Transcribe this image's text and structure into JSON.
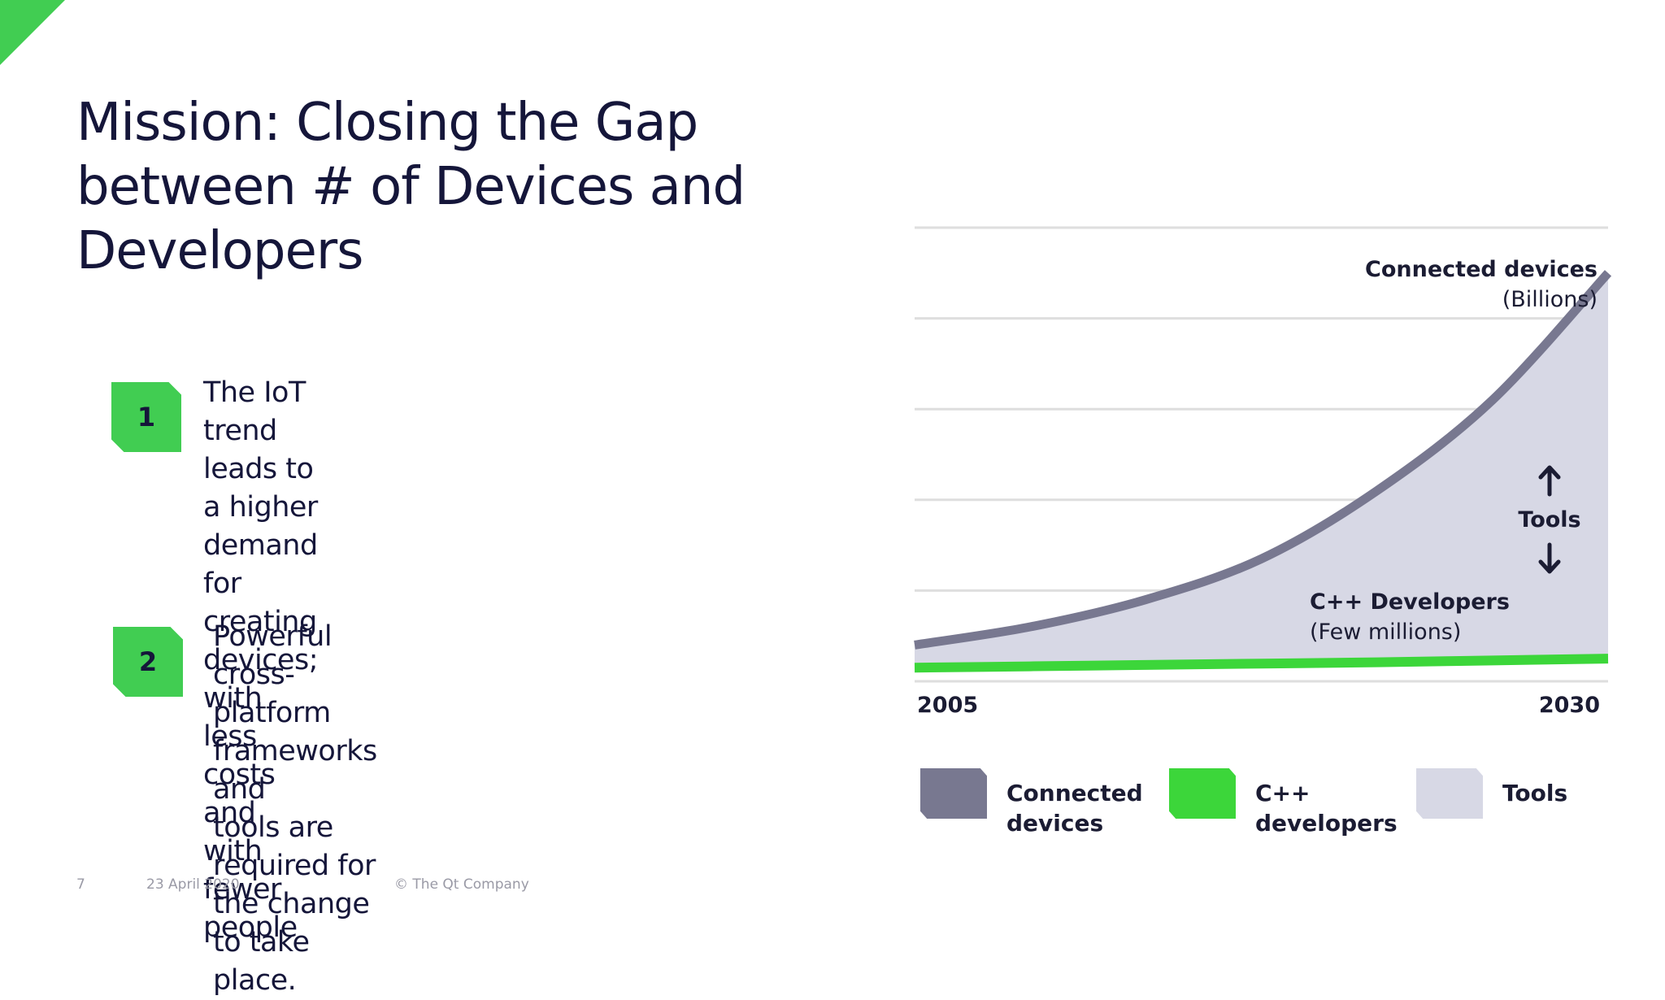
{
  "slide": {
    "title_lines": [
      "Mission: Closing the Gap",
      "between # of Devices and",
      "Developers"
    ],
    "bullets": [
      {
        "number": "1",
        "lines": [
          "The IoT trend leads to a higher demand for",
          "creating devices; with less costs and with",
          "fewer people"
        ]
      },
      {
        "number": "2",
        "lines": [
          "Powerful cross-platform frameworks and",
          "tools are required for the change to take",
          "place."
        ]
      }
    ],
    "footer": {
      "page": "7",
      "date": "23 April 2020",
      "copyright": "© The Qt Company"
    }
  },
  "chart_data": {
    "type": "area",
    "x_labels": [
      "2005",
      "2030"
    ],
    "series": [
      {
        "name": "Connected devices",
        "color": "#787890",
        "values": [
          0.08,
          0.12,
          0.18,
          0.27,
          0.42,
          0.62,
          0.9
        ]
      },
      {
        "name": "C++ developers",
        "color": "#3cd63a",
        "values": [
          0.03,
          0.033,
          0.036,
          0.039,
          0.042,
          0.046,
          0.05
        ]
      }
    ],
    "fill": {
      "name": "Tools",
      "color": "#d7d8e5"
    },
    "annotations": {
      "devices_title": "Connected devices",
      "devices_sub": "(Billions)",
      "devs_title": "C++ Developers",
      "devs_sub": "(Few millions)",
      "gap_label": "Tools"
    },
    "legend": [
      {
        "label_lines": [
          "Connected",
          "devices"
        ],
        "color": "#787890"
      },
      {
        "label_lines": [
          "C++",
          "developers"
        ],
        "color": "#3cd63a"
      },
      {
        "label_lines": [
          "Tools"
        ],
        "color": "#d7d8e5"
      }
    ],
    "grid": true
  },
  "colors": {
    "accent": "#41cd52",
    "text": "#15163a"
  }
}
